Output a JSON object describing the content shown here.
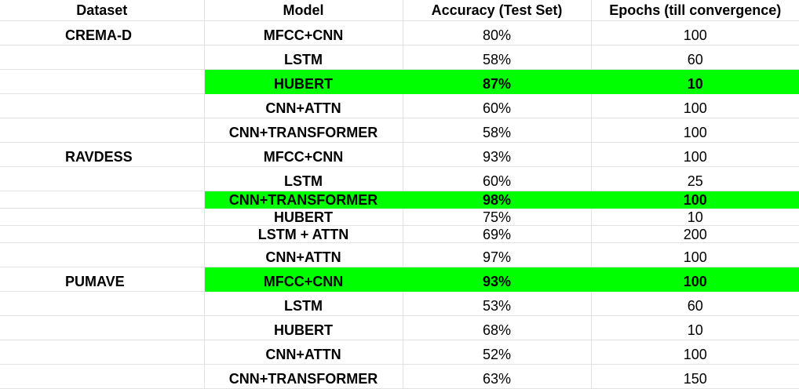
{
  "table": {
    "headers": [
      "Dataset",
      "Model",
      "Accuracy  (Test Set)",
      "Epochs (till convergence)"
    ],
    "highlight_color": "#00ff00",
    "rows": [
      {
        "dataset": "CREMA-D",
        "model": "MFCC+CNN",
        "accuracy": "80%",
        "epochs": "100",
        "best": false
      },
      {
        "dataset": "",
        "model": "LSTM",
        "accuracy": "58%",
        "epochs": "60",
        "best": false
      },
      {
        "dataset": "",
        "model": "HUBERT",
        "accuracy": "87%",
        "epochs": "10",
        "best": true
      },
      {
        "dataset": "",
        "model": "CNN+ATTN",
        "accuracy": "60%",
        "epochs": "100",
        "best": false
      },
      {
        "dataset": "",
        "model": "CNN+TRANSFORMER",
        "accuracy": "58%",
        "epochs": "100",
        "best": false
      },
      {
        "dataset": "RAVDESS",
        "model": "MFCC+CNN",
        "accuracy": "93%",
        "epochs": "100",
        "best": false
      },
      {
        "dataset": "",
        "model": "LSTM",
        "accuracy": "60%",
        "epochs": "25",
        "best": false
      },
      {
        "dataset": "",
        "model": "CNN+TRANSFORMER",
        "accuracy": "98%",
        "epochs": "100",
        "best": true,
        "compact": true
      },
      {
        "dataset": "",
        "model": "HUBERT",
        "accuracy": "75%",
        "epochs": "10",
        "best": false,
        "compact": true
      },
      {
        "dataset": "",
        "model": "LSTM + ATTN",
        "accuracy": "69%",
        "epochs": "200",
        "best": false,
        "compact": true
      },
      {
        "dataset": "",
        "model": "CNN+ATTN",
        "accuracy": "97%",
        "epochs": "100",
        "best": false
      },
      {
        "dataset": "PUMAVE",
        "model": "MFCC+CNN",
        "accuracy": "93%",
        "epochs": "100",
        "best": true
      },
      {
        "dataset": "",
        "model": "LSTM",
        "accuracy": "53%",
        "epochs": "60",
        "best": false
      },
      {
        "dataset": "",
        "model": "HUBERT",
        "accuracy": "68%",
        "epochs": "10",
        "best": false
      },
      {
        "dataset": "",
        "model": "CNN+ATTN",
        "accuracy": "52%",
        "epochs": "100",
        "best": false
      },
      {
        "dataset": "",
        "model": "CNN+TRANSFORMER",
        "accuracy": "63%",
        "epochs": "150",
        "best": false
      }
    ]
  }
}
